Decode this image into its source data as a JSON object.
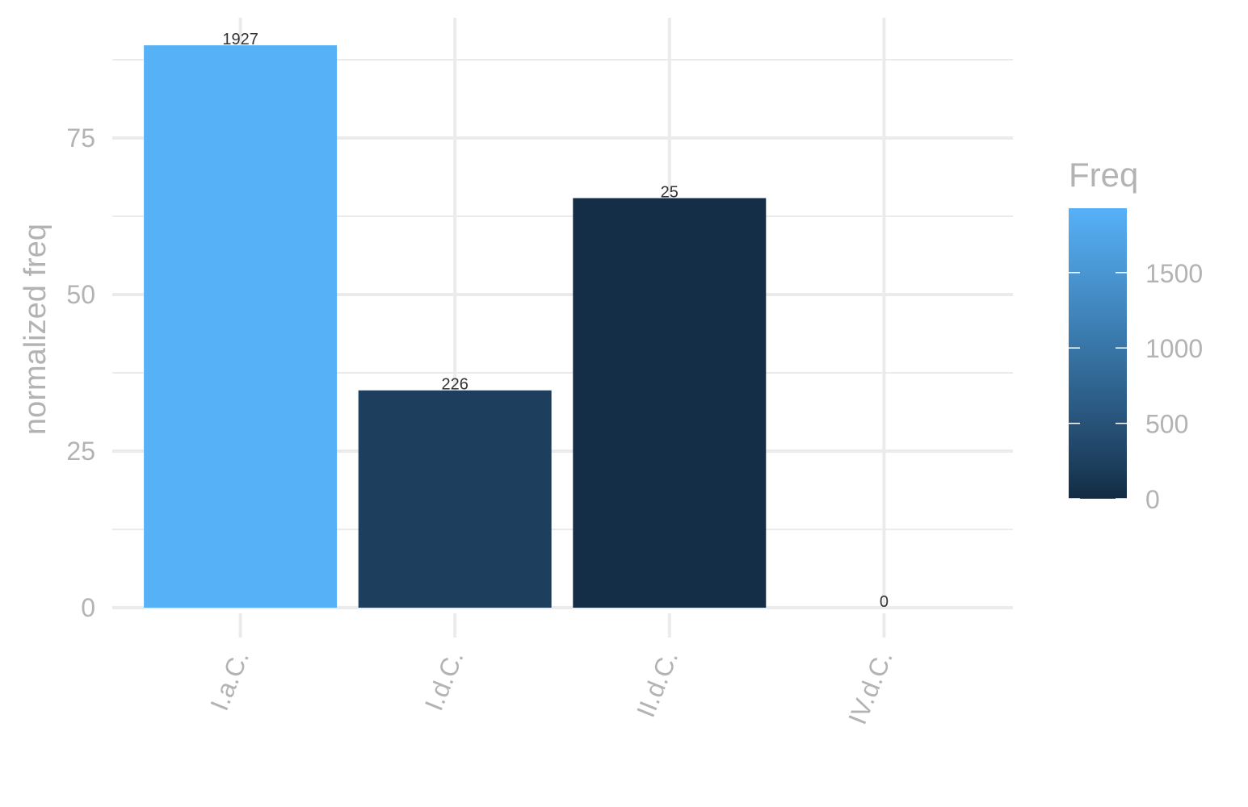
{
  "chart_data": {
    "type": "bar",
    "categories": [
      "I.a.C.",
      "I.d.C.",
      "II.d.C.",
      "IV.d.C."
    ],
    "values": [
      89.8,
      34.7,
      65.4,
      0
    ],
    "data_labels": [
      "1927",
      "226",
      "25",
      "0"
    ],
    "freq": [
      1927,
      226,
      25,
      0
    ],
    "ylabel": "normalized freq",
    "y_ticks": [
      0,
      25,
      50,
      75
    ],
    "ylim": [
      0,
      92
    ],
    "grid": true,
    "legend": {
      "title": "Freq",
      "position": "right",
      "type": "colorbar",
      "ticks": [
        0,
        500,
        1000,
        1500
      ],
      "range": [
        0,
        1927
      ],
      "low_color": "#132b43",
      "high_color": "#56b1f7"
    }
  }
}
